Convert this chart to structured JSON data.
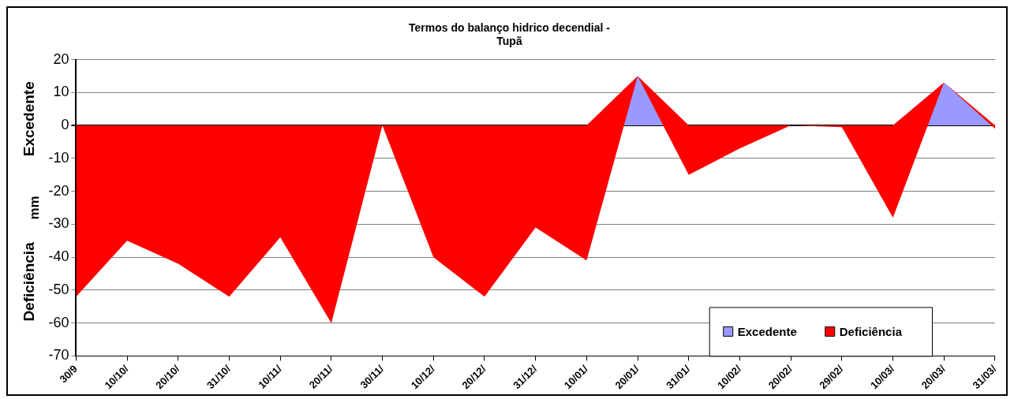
{
  "chart_data": {
    "type": "area",
    "title": "Termos do balanço hidrico decendial -\nTupã",
    "ylabel": "mm",
    "annotations": [
      "Excedente",
      "Deficiência"
    ],
    "categories": [
      "30/9",
      "10/10/",
      "20/10/",
      "31/10/",
      "10/11/",
      "20/11/",
      "30/11/",
      "10/12/",
      "20/12/",
      "31/12/",
      "10/01/",
      "20/01/",
      "31/01/",
      "10/02/",
      "20/02/",
      "29/02/",
      "10/03/",
      "20/03/",
      "31/03/"
    ],
    "series": [
      {
        "name": "Excedente",
        "color": "#9999ff",
        "values": [
          0,
          0,
          0,
          0,
          0,
          0,
          0,
          0,
          0,
          0,
          0,
          15,
          0,
          0,
          0,
          0,
          0,
          13,
          0
        ]
      },
      {
        "name": "Deficiência",
        "color": "#ff0000",
        "values": [
          -52,
          -35,
          -42,
          -52,
          -34,
          -60,
          0,
          -40,
          -52,
          -31,
          -41,
          0,
          -15,
          -7,
          0,
          -0.5,
          -28,
          0,
          -1
        ]
      }
    ],
    "stacked": true,
    "ylim": [
      -70,
      20
    ],
    "yticks": [
      -70,
      -60,
      -50,
      -40,
      -30,
      -20,
      -10,
      0,
      10,
      20
    ],
    "grid": "y",
    "legend": "bottom right"
  }
}
